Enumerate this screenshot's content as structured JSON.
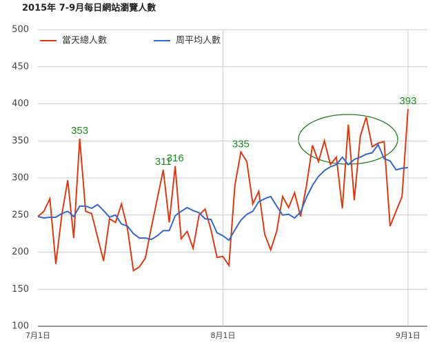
{
  "chart_data": {
    "type": "line",
    "title": "2015年 7-9月每日網站瀏覽人數",
    "categories": [
      "7月1日",
      null,
      null,
      null,
      null,
      null,
      null,
      null,
      null,
      null,
      null,
      null,
      null,
      null,
      null,
      null,
      null,
      null,
      null,
      null,
      null,
      null,
      null,
      null,
      null,
      null,
      null,
      null,
      null,
      null,
      null,
      "8月1日",
      null,
      null,
      null,
      null,
      null,
      null,
      null,
      null,
      null,
      null,
      null,
      null,
      null,
      null,
      null,
      null,
      null,
      null,
      null,
      null,
      null,
      null,
      null,
      null,
      null,
      null,
      null,
      null,
      null,
      null,
      "9月1日"
    ],
    "series": [
      {
        "name": "當天總人數",
        "color": "#dc3912",
        "values": [
          248,
          255,
          272,
          184,
          250,
          297,
          219,
          353,
          255,
          252,
          220,
          188,
          245,
          240,
          265,
          232,
          175,
          180,
          192,
          233,
          272,
          311,
          240,
          316,
          218,
          228,
          205,
          250,
          258,
          230,
          193,
          194,
          182,
          290,
          335,
          322,
          265,
          282,
          224,
          203,
          228,
          275,
          260,
          280,
          248,
          290,
          344,
          322,
          350,
          318,
          328,
          259,
          372,
          270,
          356,
          382,
          342,
          347,
          349,
          235,
          255,
          275,
          393
        ],
        "value_labels": [
          null,
          null,
          null,
          null,
          null,
          null,
          null,
          "353",
          null,
          null,
          null,
          null,
          null,
          null,
          null,
          null,
          null,
          null,
          null,
          null,
          null,
          "311",
          null,
          "316",
          null,
          null,
          null,
          null,
          null,
          null,
          null,
          null,
          null,
          null,
          "335",
          null,
          null,
          null,
          null,
          null,
          null,
          null,
          null,
          null,
          null,
          null,
          null,
          null,
          null,
          null,
          null,
          null,
          null,
          null,
          null,
          null,
          null,
          null,
          null,
          null,
          null,
          null,
          "393"
        ]
      },
      {
        "name": "周平均人數",
        "color": "#3366cc",
        "values": [
          248,
          246,
          247,
          247,
          252,
          255,
          248,
          262,
          262,
          259,
          264,
          256,
          247,
          250,
          238,
          235,
          225,
          219,
          219,
          217,
          222,
          229,
          229,
          249,
          255,
          260,
          256,
          253,
          245,
          244,
          226,
          222,
          216,
          230,
          243,
          251,
          255,
          268,
          272,
          275,
          262,
          250,
          251,
          246,
          254,
          274,
          290,
          302,
          310,
          315,
          318,
          328,
          318,
          325,
          328,
          332,
          334,
          345,
          326,
          323,
          311,
          313,
          314
        ]
      }
    ],
    "ylim": [
      100,
      500
    ],
    "yticks": [
      100,
      150,
      200,
      250,
      300,
      350,
      400,
      450,
      500
    ],
    "grid": true,
    "legend": "top-left"
  }
}
